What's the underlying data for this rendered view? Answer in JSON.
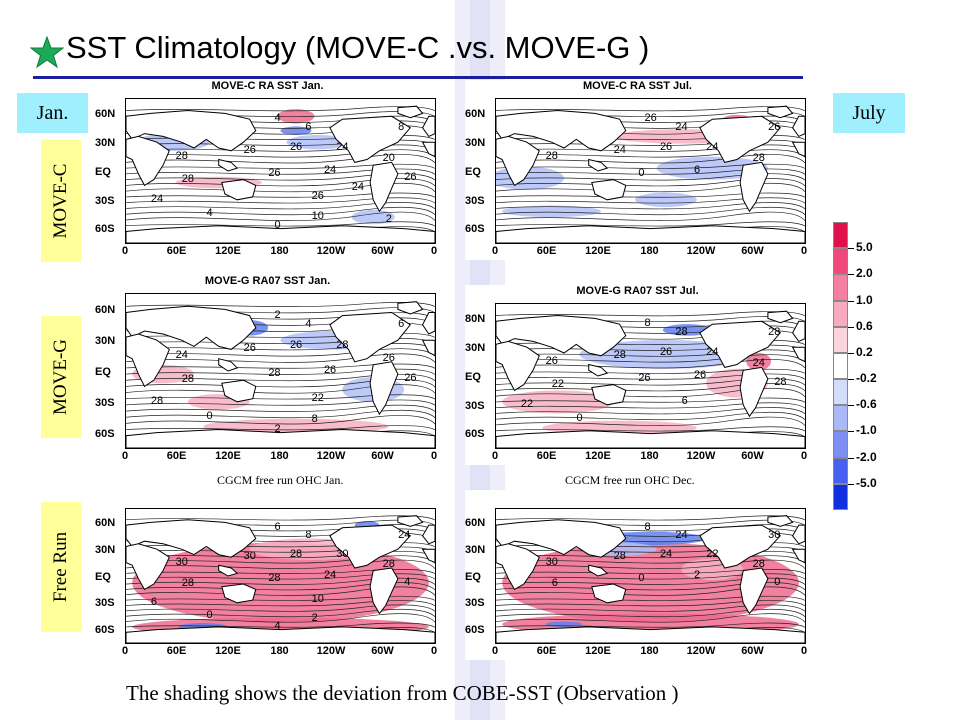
{
  "slide": {
    "title": "SST Climatology (MOVE-C .vs. MOVE-G )",
    "footer": "The shading shows the deviation from COBE-SST (Observation )"
  },
  "column_tags": {
    "jan": "Jan.",
    "july": "July"
  },
  "row_labels": {
    "move_c": "MOVE-C",
    "move_g": "MOVE-G",
    "free": "Free Run"
  },
  "captions": {
    "free_jan": "CGCM free run OHC Jan.",
    "free_dec": "CGCM free run  OHC Dec."
  },
  "axes": {
    "lat_ticks": [
      "60N",
      "30N",
      "EQ",
      "30S",
      "60S"
    ],
    "lat_ticks_g_jul": [
      "80N",
      "30N",
      "EQ",
      "30S",
      "60S"
    ],
    "lon_ticks": [
      "0",
      "60E",
      "120E",
      "180",
      "120W",
      "60W",
      "0"
    ]
  },
  "panels": [
    {
      "key": "c_jan",
      "title": "MOVE-C RA SST Jan.",
      "contours": [
        "4",
        "6",
        "8",
        "20",
        "28",
        "26",
        "26",
        "24",
        "26",
        "24",
        "28",
        "26",
        "24",
        "26",
        "4",
        "10",
        "0",
        "2",
        "24"
      ]
    },
    {
      "key": "c_jul",
      "title": "MOVE-C RA SST Jul.",
      "contours": [
        "26",
        "24",
        "26",
        "28",
        "28",
        "24",
        "26",
        "24",
        "0",
        "6"
      ]
    },
    {
      "key": "g_jan",
      "title": "MOVE-G RA07 SST Jan.",
      "contours": [
        "2",
        "4",
        "6",
        "26",
        "24",
        "26",
        "26",
        "28",
        "28",
        "26",
        "28",
        "26",
        "28",
        "22",
        "0",
        "8",
        "2"
      ]
    },
    {
      "key": "g_jul",
      "title": "MOVE-G RA07 SST Jul.",
      "contours": [
        "8",
        "28",
        "28",
        "24",
        "26",
        "28",
        "26",
        "24",
        "26",
        "26",
        "22",
        "28",
        "22",
        "6",
        "0"
      ]
    },
    {
      "key": "f_jan",
      "title": "",
      "contours": [
        "6",
        "8",
        "24",
        "28",
        "30",
        "30",
        "28",
        "30",
        "28",
        "24",
        "28",
        "4",
        "6",
        "10",
        "0",
        "2",
        "4"
      ]
    },
    {
      "key": "f_dec",
      "title": "",
      "contours": [
        "8",
        "24",
        "30",
        "28",
        "30",
        "28",
        "24",
        "22",
        "0",
        "2",
        "6",
        "0"
      ]
    }
  ],
  "colorbar": {
    "labels": [
      "5.0",
      "2.0",
      "1.0",
      "0.6",
      "0.2",
      "-0.2",
      "-0.6",
      "-1.0",
      "-2.0",
      "-5.0"
    ],
    "colors": [
      "#e0104a",
      "#f04878",
      "#f47fa0",
      "#f8aac0",
      "#fcd4e0",
      "#ffffff",
      "#d4dcfc",
      "#aab8f8",
      "#7f90f4",
      "#4860f0",
      "#1030e0"
    ]
  },
  "shading": {
    "warm": "#f06a8e",
    "warm_light": "#f8b0c4",
    "cold": "#6080f0",
    "cold_light": "#b0c0f8"
  }
}
